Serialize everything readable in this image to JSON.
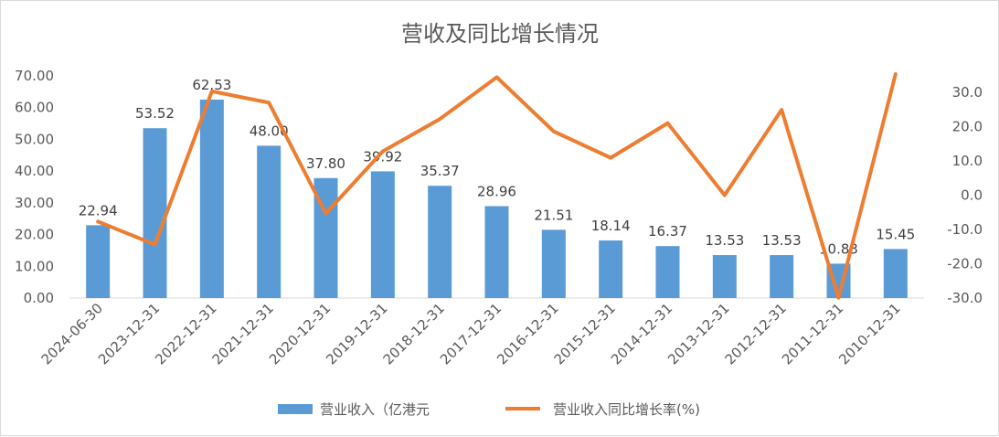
{
  "chart_data": {
    "type": "bar+line",
    "title": "营收及同比增长情况",
    "categories": [
      "2024-06-30",
      "2023-12-31",
      "2022-12-31",
      "2021-12-31",
      "2020-12-31",
      "2019-12-31",
      "2018-12-31",
      "2017-12-31",
      "2016-12-31",
      "2015-12-31",
      "2014-12-31",
      "2013-12-31",
      "2012-12-31",
      "2011-12-31",
      "2010-12-31"
    ],
    "series": [
      {
        "name": "营业收入（亿港元",
        "type": "bar",
        "axis": "left",
        "color": "#5B9BD5",
        "values": [
          22.94,
          53.52,
          62.53,
          48.0,
          37.8,
          39.92,
          35.37,
          28.96,
          21.51,
          18.14,
          16.37,
          13.53,
          13.53,
          10.83,
          15.45
        ],
        "labels": [
          "22.94",
          "53.52",
          "62.53",
          "48.00",
          "37.80",
          "39.92",
          "35.37",
          "28.96",
          "21.51",
          "18.14",
          "16.37",
          "13.53",
          "13.53",
          "10.83",
          "15.45"
        ]
      },
      {
        "name": "营业收入同比增长率(%)",
        "type": "line",
        "axis": "right",
        "color": "#ED7D31",
        "values": [
          -7.7,
          -14.4,
          30.3,
          27.0,
          -5.3,
          12.8,
          22.2,
          34.4,
          18.6,
          10.9,
          21.0,
          0.0,
          24.9,
          -29.9,
          35.6
        ]
      }
    ],
    "y_left": {
      "min": 0,
      "max": 70,
      "ticks": [
        "0.00",
        "10.00",
        "20.00",
        "30.00",
        "40.00",
        "50.00",
        "60.00",
        "70.00"
      ],
      "tick_values": [
        0,
        10,
        20,
        30,
        40,
        50,
        60,
        70
      ]
    },
    "y_right": {
      "min": -30,
      "max": 35,
      "ticks": [
        "-30.0",
        "-20.0",
        "-10.0",
        "0.0",
        "10.0",
        "20.0",
        "30.0"
      ],
      "tick_values": [
        -30,
        -20,
        -10,
        0,
        10,
        20,
        30
      ]
    },
    "grid": false,
    "legend_position": "bottom"
  }
}
